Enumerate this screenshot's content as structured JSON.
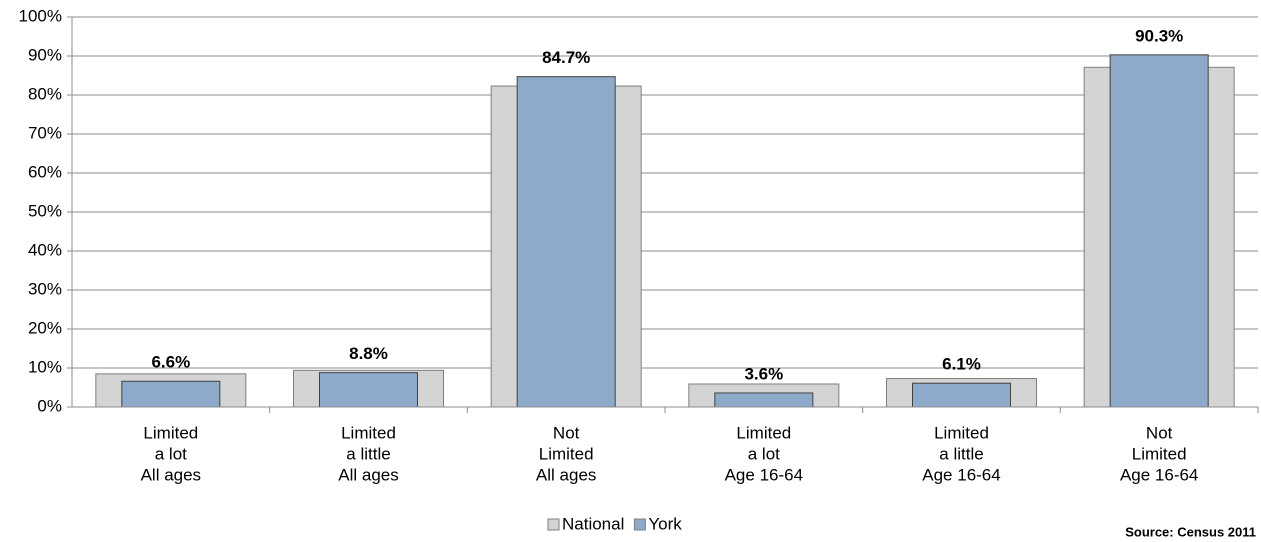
{
  "chart_data": {
    "type": "bar",
    "categories": [
      [
        "Limited",
        "a lot",
        "All ages"
      ],
      [
        "Limited",
        "a little",
        "All ages"
      ],
      [
        "Not",
        "Limited",
        "All ages"
      ],
      [
        "Limited",
        "a lot",
        "Age 16-64"
      ],
      [
        "Limited",
        "a little",
        "Age 16-64"
      ],
      [
        "Not",
        "Limited",
        "Age 16-64"
      ]
    ],
    "series": [
      {
        "name": "National",
        "color": "#d4d4d4",
        "values": [
          8.5,
          9.4,
          82.3,
          5.9,
          7.3,
          87.1
        ]
      },
      {
        "name": "York",
        "color": "#8eaacb",
        "values": [
          6.6,
          8.8,
          84.7,
          3.6,
          6.1,
          90.3
        ],
        "value_labels": [
          "6.6%",
          "8.8%",
          "84.7%",
          "3.6%",
          "6.1%",
          "90.3%"
        ]
      }
    ],
    "ylim": [
      0,
      100
    ],
    "yticks": [
      {
        "value": 0,
        "label": "0%"
      },
      {
        "value": 10,
        "label": "10%"
      },
      {
        "value": 20,
        "label": "20%"
      },
      {
        "value": 30,
        "label": "30%"
      },
      {
        "value": 40,
        "label": "40%"
      },
      {
        "value": 50,
        "label": "50%"
      },
      {
        "value": 60,
        "label": "60%"
      },
      {
        "value": 70,
        "label": "70%"
      },
      {
        "value": 80,
        "label": "80%"
      },
      {
        "value": 90,
        "label": "90%"
      },
      {
        "value": 100,
        "label": "100%"
      }
    ],
    "grid": true,
    "legend": "bottom",
    "source": "Source: Census 2011"
  }
}
